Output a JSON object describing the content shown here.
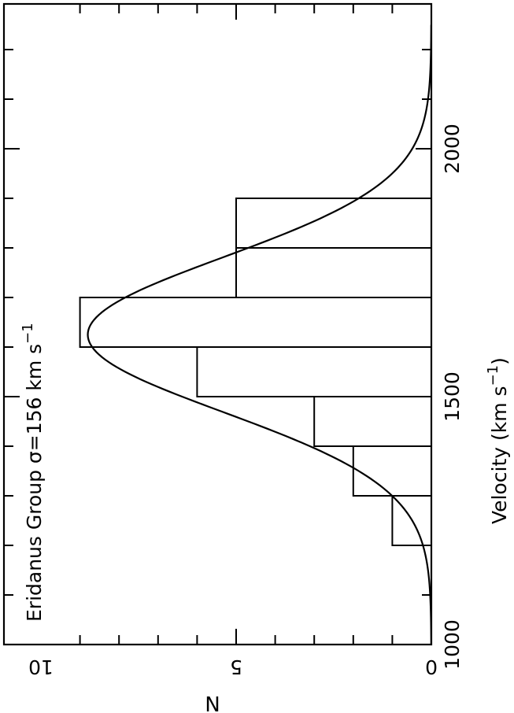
{
  "chart_data": {
    "type": "bar",
    "orientation": "rotated-90",
    "title": "Eridanus Group σ=156 km s⁻¹",
    "title_parts": {
      "main": "Eridanus Group σ=156 km s",
      "superscript": "−1"
    },
    "xlabel": "Velocity (km s⁻¹)",
    "xlabel_parts": {
      "main": "Velocity  (km s",
      "superscript": "−1",
      "close": ")"
    },
    "ylabel": "N",
    "x_ticks": [
      1000,
      1500,
      2000
    ],
    "y_ticks": [
      0,
      5,
      10
    ],
    "xlim": [
      1000,
      2250
    ],
    "ylim": [
      0,
      10
    ],
    "bin_width": 100,
    "bars": [
      {
        "x0": 1100,
        "x1": 1200,
        "value": 0
      },
      {
        "x0": 1200,
        "x1": 1300,
        "value": 1
      },
      {
        "x0": 1300,
        "x1": 1400,
        "value": 2
      },
      {
        "x0": 1400,
        "x1": 1500,
        "value": 3
      },
      {
        "x0": 1500,
        "x1": 1600,
        "value": 6
      },
      {
        "x0": 1600,
        "x1": 1700,
        "value": 9
      },
      {
        "x0": 1700,
        "x1": 1800,
        "value": 5
      },
      {
        "x0": 1800,
        "x1": 1900,
        "value": 5
      }
    ],
    "fit_curve": {
      "type": "gaussian",
      "mean": 1625,
      "sigma": 156,
      "peak": 8.8
    },
    "grid": false,
    "legend": "none"
  }
}
